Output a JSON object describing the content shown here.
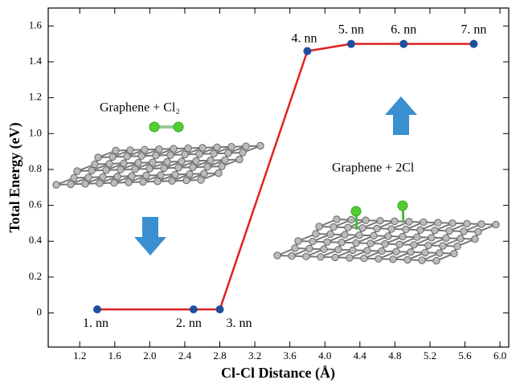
{
  "chart_data": {
    "type": "line",
    "x_label": "Cl-Cl Distance (Å)",
    "y_label": "Total Energy (eV)",
    "series": [
      {
        "color": "#e02020",
        "marker_color": "#1f4fa0",
        "x": [
          1.4,
          2.5,
          2.8,
          3.8,
          4.3,
          4.9,
          5.7
        ],
        "values": [
          0.02,
          0.02,
          0.02,
          1.46,
          1.5,
          1.5,
          1.5
        ],
        "point_labels": [
          "1. nn",
          "2. nn",
          "3. nn",
          "4. nn",
          "5. nn",
          "6. nn",
          "7. nn"
        ]
      }
    ],
    "annotations": [
      "Graphene + Cl₂",
      "Graphene + 2Cl"
    ],
    "xlim": [
      0.84,
      6.1
    ],
    "ylim": [
      -0.19,
      1.7
    ],
    "xticks": [
      1.2,
      1.6,
      {
        "value": 2.0,
        "label": "2.0"
      },
      2.4,
      2.8,
      3.2,
      3.6,
      {
        "value": 4.0,
        "label": "4.0"
      },
      4.4,
      4.8,
      5.2,
      5.6,
      {
        "value": 6.0,
        "label": "6.0"
      }
    ],
    "yticks": [
      0,
      0.2,
      0.4,
      0.6,
      0.8,
      {
        "value": 1.0,
        "label": "1.0"
      },
      1.2,
      1.4,
      1.6
    ]
  }
}
